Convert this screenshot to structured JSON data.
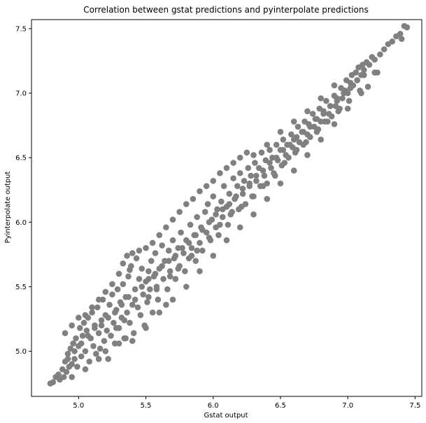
{
  "chart_data": {
    "type": "scatter",
    "title": "Correlation between gstat predictions and pyinterpolate predictions",
    "xlabel": "Gstat output",
    "ylabel": "Pyinterpolate output",
    "xlim": [
      4.65,
      7.55
    ],
    "ylim": [
      4.65,
      7.57
    ],
    "xticks": [
      5.0,
      5.5,
      6.0,
      6.5,
      7.0,
      7.5
    ],
    "yticks": [
      5.0,
      5.5,
      6.0,
      6.5,
      7.0,
      7.5
    ],
    "xtick_labels": [
      "5.0",
      "5.5",
      "6.0",
      "6.5",
      "7.0",
      "7.5"
    ],
    "ytick_labels": [
      "5.0",
      "5.5",
      "6.0",
      "6.5",
      "7.0",
      "7.5"
    ],
    "grid": false,
    "marker_color": "#808080",
    "points": [
      [
        4.79,
        4.75
      ],
      [
        4.81,
        4.76
      ],
      [
        4.83,
        4.8
      ],
      [
        4.85,
        4.82
      ],
      [
        4.86,
        4.78
      ],
      [
        4.88,
        4.86
      ],
      [
        4.89,
        4.8
      ],
      [
        4.9,
        4.92
      ],
      [
        4.91,
        4.84
      ],
      [
        4.92,
        4.98
      ],
      [
        4.93,
        4.88
      ],
      [
        4.94,
        5.02
      ],
      [
        4.95,
        4.9
      ],
      [
        4.96,
        5.06
      ],
      [
        4.97,
        4.94
      ],
      [
        4.98,
        5.1
      ],
      [
        4.99,
        4.88
      ],
      [
        5.0,
        5.04
      ],
      [
        5.01,
        5.18
      ],
      [
        5.02,
        4.96
      ],
      [
        5.03,
        5.12
      ],
      [
        5.04,
        5.22
      ],
      [
        5.05,
        5.0
      ],
      [
        5.06,
        5.16
      ],
      [
        5.07,
        5.26
      ],
      [
        5.08,
        4.92
      ],
      [
        5.09,
        5.1
      ],
      [
        5.1,
        5.3
      ],
      [
        5.11,
        5.04
      ],
      [
        5.12,
        5.2
      ],
      [
        5.13,
        4.98
      ],
      [
        5.14,
        5.34
      ],
      [
        5.15,
        5.14
      ],
      [
        5.16,
        5.02
      ],
      [
        5.17,
        5.24
      ],
      [
        5.18,
        5.4
      ],
      [
        5.19,
        5.08
      ],
      [
        5.2,
        5.28
      ],
      [
        5.21,
        5.16
      ],
      [
        5.22,
        4.94
      ],
      [
        5.23,
        5.36
      ],
      [
        5.24,
        5.12
      ],
      [
        5.25,
        5.44
      ],
      [
        5.26,
        5.22
      ],
      [
        5.27,
        5.06
      ],
      [
        5.28,
        5.32
      ],
      [
        5.29,
        5.48
      ],
      [
        5.3,
        5.18
      ],
      [
        5.31,
        5.38
      ],
      [
        5.32,
        5.26
      ],
      [
        5.33,
        5.52
      ],
      [
        5.34,
        5.1
      ],
      [
        5.35,
        5.42
      ],
      [
        5.36,
        5.3
      ],
      [
        5.37,
        5.58
      ],
      [
        5.38,
        5.22
      ],
      [
        5.39,
        5.66
      ],
      [
        5.4,
        5.36
      ],
      [
        5.41,
        5.14
      ],
      [
        5.42,
        5.48
      ],
      [
        5.43,
        5.72
      ],
      [
        5.44,
        5.34
      ],
      [
        5.45,
        5.56
      ],
      [
        5.46,
        5.28
      ],
      [
        5.47,
        5.64
      ],
      [
        5.48,
        5.44
      ],
      [
        5.49,
        5.2
      ],
      [
        5.5,
        5.54
      ],
      [
        5.51,
        5.38
      ],
      [
        5.52,
        5.62
      ],
      [
        5.53,
        5.48
      ],
      [
        5.54,
        5.7
      ],
      [
        5.55,
        5.3
      ],
      [
        5.56,
        5.58
      ],
      [
        5.57,
        5.76
      ],
      [
        5.58,
        5.5
      ],
      [
        5.59,
        5.4
      ],
      [
        5.6,
        5.64
      ],
      [
        5.62,
        5.82
      ],
      [
        5.63,
        5.56
      ],
      [
        5.64,
        5.7
      ],
      [
        5.66,
        5.48
      ],
      [
        5.67,
        5.78
      ],
      [
        5.68,
        5.62
      ],
      [
        5.7,
        5.86
      ],
      [
        5.71,
        5.72
      ],
      [
        5.72,
        5.56
      ],
      [
        5.74,
        5.8
      ],
      [
        5.75,
        5.66
      ],
      [
        5.76,
        5.92
      ],
      [
        5.78,
        5.76
      ],
      [
        5.79,
        5.62
      ],
      [
        5.8,
        5.86
      ],
      [
        5.82,
        5.72
      ],
      [
        5.83,
        5.98
      ],
      [
        5.84,
        5.8
      ],
      [
        5.86,
        5.9
      ],
      [
        5.87,
        5.7
      ],
      [
        5.88,
        6.04
      ],
      [
        5.9,
        5.84
      ],
      [
        5.91,
        5.96
      ],
      [
        5.92,
        5.78
      ],
      [
        5.94,
        6.08
      ],
      [
        5.95,
        5.92
      ],
      [
        5.96,
        6.14
      ],
      [
        5.98,
        5.86
      ],
      [
        5.99,
        6.02
      ],
      [
        6.0,
        6.2
      ],
      [
        6.02,
        5.96
      ],
      [
        6.03,
        6.1
      ],
      [
        6.04,
        5.9
      ],
      [
        6.06,
        6.16
      ],
      [
        6.07,
        6.04
      ],
      [
        6.08,
        6.28
      ],
      [
        6.1,
        6.12
      ],
      [
        6.11,
        5.98
      ],
      [
        6.12,
        6.22
      ],
      [
        6.14,
        6.08
      ],
      [
        6.15,
        6.34
      ],
      [
        6.16,
        6.18
      ],
      [
        6.18,
        6.28
      ],
      [
        6.19,
        6.1
      ],
      [
        6.2,
        6.38
      ],
      [
        6.22,
        6.22
      ],
      [
        6.23,
        6.32
      ],
      [
        6.24,
        6.14
      ],
      [
        6.26,
        6.42
      ],
      [
        6.27,
        6.28
      ],
      [
        6.28,
        6.36
      ],
      [
        6.3,
        6.2
      ],
      [
        6.31,
        6.46
      ],
      [
        6.32,
        6.32
      ],
      [
        6.34,
        6.42
      ],
      [
        6.35,
        6.28
      ],
      [
        6.36,
        6.54
      ],
      [
        6.38,
        6.36
      ],
      [
        6.39,
        6.48
      ],
      [
        6.4,
        6.3
      ],
      [
        6.42,
        6.56
      ],
      [
        6.43,
        6.42
      ],
      [
        6.44,
        6.5
      ],
      [
        6.46,
        6.36
      ],
      [
        6.47,
        6.6
      ],
      [
        6.48,
        6.48
      ],
      [
        6.5,
        6.56
      ],
      [
        6.51,
        6.44
      ],
      [
        6.52,
        6.64
      ],
      [
        6.54,
        6.52
      ],
      [
        6.55,
        6.6
      ],
      [
        6.56,
        6.5
      ],
      [
        6.58,
        6.68
      ],
      [
        6.59,
        6.58
      ],
      [
        6.6,
        6.64
      ],
      [
        6.62,
        6.56
      ],
      [
        6.63,
        6.74
      ],
      [
        6.64,
        6.62
      ],
      [
        6.66,
        6.7
      ],
      [
        6.67,
        6.6
      ],
      [
        6.68,
        6.78
      ],
      [
        6.7,
        6.68
      ],
      [
        6.71,
        6.76
      ],
      [
        6.72,
        6.66
      ],
      [
        6.74,
        6.84
      ],
      [
        6.75,
        6.74
      ],
      [
        6.76,
        6.8
      ],
      [
        6.78,
        6.72
      ],
      [
        6.79,
        6.88
      ],
      [
        6.8,
        6.78
      ],
      [
        6.82,
        6.86
      ],
      [
        6.83,
        6.78
      ],
      [
        6.84,
        6.94
      ],
      [
        6.86,
        6.84
      ],
      [
        6.87,
        6.9
      ],
      [
        6.88,
        6.82
      ],
      [
        6.9,
        6.98
      ],
      [
        6.91,
        6.9
      ],
      [
        6.92,
        6.96
      ],
      [
        6.94,
        6.88
      ],
      [
        6.95,
        7.04
      ],
      [
        6.96,
        6.96
      ],
      [
        6.98,
        7.02
      ],
      [
        6.99,
        7.1
      ],
      [
        7.0,
        7.0
      ],
      [
        7.02,
        7.08
      ],
      [
        7.03,
        7.14
      ],
      [
        7.04,
        7.06
      ],
      [
        7.06,
        7.16
      ],
      [
        7.07,
        7.1
      ],
      [
        7.08,
        7.2
      ],
      [
        7.1,
        7.14
      ],
      [
        7.11,
        7.22
      ],
      [
        7.12,
        7.18
      ],
      [
        7.14,
        7.24
      ],
      [
        7.16,
        7.22
      ],
      [
        7.18,
        7.28
      ],
      [
        7.2,
        7.26
      ],
      [
        7.22,
        7.16
      ],
      [
        7.24,
        7.3
      ],
      [
        7.27,
        7.34
      ],
      [
        7.3,
        7.38
      ],
      [
        7.33,
        7.4
      ],
      [
        7.36,
        7.44
      ],
      [
        7.39,
        7.46
      ],
      [
        7.42,
        7.52
      ],
      [
        7.44,
        7.51
      ],
      [
        7.4,
        7.42
      ],
      [
        4.9,
        5.14
      ],
      [
        4.95,
        5.2
      ],
      [
        5.0,
        5.26
      ],
      [
        5.05,
        5.28
      ],
      [
        5.1,
        5.34
      ],
      [
        5.15,
        5.4
      ],
      [
        5.2,
        5.46
      ],
      [
        5.25,
        5.52
      ],
      [
        5.3,
        5.6
      ],
      [
        5.33,
        5.68
      ],
      [
        5.36,
        5.74
      ],
      [
        5.38,
        5.63
      ],
      [
        5.4,
        5.76
      ],
      [
        5.45,
        5.78
      ],
      [
        5.5,
        5.8
      ],
      [
        5.55,
        5.84
      ],
      [
        5.6,
        5.9
      ],
      [
        5.65,
        5.96
      ],
      [
        5.7,
        6.02
      ],
      [
        5.75,
        6.08
      ],
      [
        5.8,
        6.14
      ],
      [
        5.85,
        6.18
      ],
      [
        5.9,
        6.24
      ],
      [
        5.95,
        6.28
      ],
      [
        6.0,
        6.32
      ],
      [
        6.05,
        6.38
      ],
      [
        6.1,
        6.42
      ],
      [
        6.15,
        6.46
      ],
      [
        6.2,
        6.5
      ],
      [
        6.25,
        6.54
      ],
      [
        6.3,
        6.52
      ],
      [
        6.4,
        6.6
      ],
      [
        6.5,
        6.7
      ],
      [
        6.6,
        6.78
      ],
      [
        6.7,
        6.86
      ],
      [
        6.8,
        6.96
      ],
      [
        6.9,
        7.06
      ],
      [
        4.95,
        4.8
      ],
      [
        5.05,
        4.86
      ],
      [
        5.15,
        4.94
      ],
      [
        5.2,
        5.0
      ],
      [
        5.3,
        5.06
      ],
      [
        5.35,
        5.1
      ],
      [
        5.4,
        5.08
      ],
      [
        5.5,
        5.18
      ],
      [
        5.6,
        5.3
      ],
      [
        5.65,
        5.36
      ],
      [
        5.7,
        5.4
      ],
      [
        5.8,
        5.5
      ],
      [
        5.9,
        5.62
      ],
      [
        6.0,
        5.74
      ],
      [
        6.1,
        5.86
      ],
      [
        6.2,
        5.96
      ],
      [
        6.3,
        6.06
      ],
      [
        6.4,
        6.18
      ],
      [
        6.5,
        6.3
      ],
      [
        6.6,
        6.4
      ],
      [
        6.7,
        6.52
      ],
      [
        6.8,
        6.64
      ],
      [
        6.9,
        6.76
      ],
      [
        7.0,
        6.88
      ],
      [
        7.1,
        7.0
      ],
      [
        7.15,
        7.05
      ],
      [
        7.2,
        7.16
      ],
      [
        5.28,
        5.18
      ],
      [
        5.34,
        5.24
      ],
      [
        5.52,
        5.42
      ],
      [
        5.58,
        5.48
      ],
      [
        5.68,
        5.58
      ],
      [
        5.74,
        5.64
      ],
      [
        5.84,
        5.74
      ],
      [
        5.88,
        5.78
      ],
      [
        5.97,
        5.88
      ],
      [
        6.05,
        5.98
      ],
      [
        6.13,
        6.06
      ],
      [
        6.21,
        6.12
      ],
      [
        6.29,
        6.2
      ],
      [
        6.37,
        6.28
      ],
      [
        6.45,
        6.38
      ],
      [
        6.53,
        6.46
      ],
      [
        6.61,
        6.54
      ],
      [
        6.69,
        6.62
      ],
      [
        6.77,
        6.7
      ],
      [
        6.85,
        6.78
      ],
      [
        6.93,
        6.86
      ],
      [
        7.01,
        6.94
      ],
      [
        7.09,
        7.02
      ],
      [
        4.92,
        4.94
      ],
      [
        4.97,
        5.0
      ],
      [
        5.02,
        5.06
      ],
      [
        5.07,
        5.12
      ],
      [
        5.12,
        5.18
      ],
      [
        5.17,
        5.2
      ],
      [
        5.22,
        5.26
      ],
      [
        5.27,
        5.3
      ],
      [
        5.32,
        5.36
      ],
      [
        5.37,
        5.42
      ],
      [
        5.42,
        5.4
      ],
      [
        5.47,
        5.5
      ],
      [
        5.52,
        5.56
      ],
      [
        5.57,
        5.6
      ],
      [
        5.62,
        5.66
      ],
      [
        5.67,
        5.7
      ],
      [
        5.72,
        5.74
      ],
      [
        5.77,
        5.8
      ],
      [
        5.82,
        5.84
      ],
      [
        5.87,
        5.9
      ],
      [
        5.92,
        5.94
      ],
      [
        5.97,
        6.0
      ],
      [
        6.02,
        6.06
      ],
      [
        6.07,
        6.1
      ],
      [
        6.12,
        6.14
      ],
      [
        6.17,
        6.2
      ],
      [
        6.22,
        6.26
      ],
      [
        6.27,
        6.3
      ],
      [
        6.32,
        6.36
      ],
      [
        6.37,
        6.4
      ],
      [
        6.42,
        6.46
      ],
      [
        6.47,
        6.5
      ],
      [
        6.52,
        6.56
      ],
      [
        6.57,
        6.6
      ],
      [
        6.62,
        6.66
      ],
      [
        6.67,
        6.7
      ],
      [
        6.72,
        6.74
      ],
      [
        6.77,
        6.8
      ],
      [
        6.82,
        6.84
      ],
      [
        6.87,
        6.9
      ],
      [
        6.92,
        6.94
      ],
      [
        6.97,
        7.0
      ],
      [
        7.02,
        7.04
      ],
      [
        7.07,
        7.1
      ],
      [
        7.12,
        7.14
      ]
    ]
  }
}
